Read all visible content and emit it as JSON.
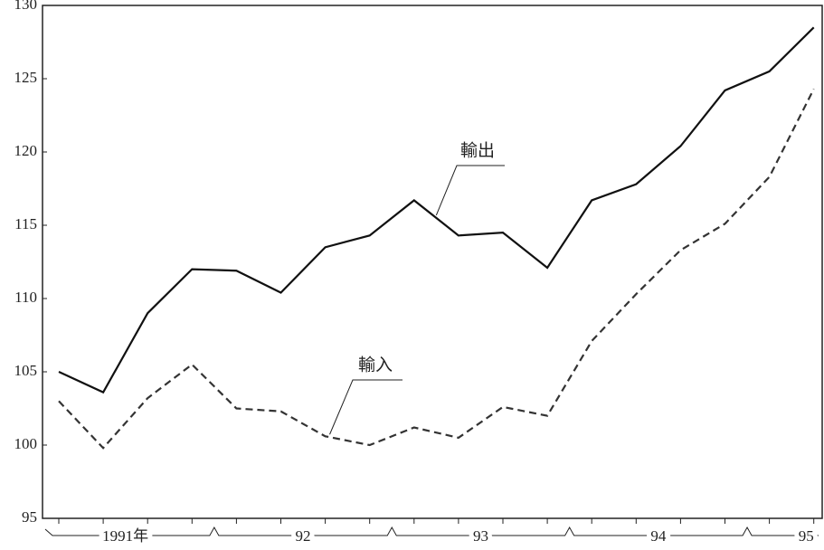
{
  "chart_data": {
    "type": "line",
    "categories": [
      null,
      null,
      null,
      null,
      null,
      null,
      null,
      null,
      null,
      null,
      null,
      null,
      null,
      null,
      null,
      null,
      null,
      null
    ],
    "year_labels": [
      "1991年",
      "92",
      "93",
      "94",
      "95"
    ],
    "series": [
      {
        "name": "輸出",
        "color": "#111111",
        "line_style": "solid",
        "values": [
          105,
          103.6,
          109,
          112,
          111.9,
          110.4,
          113.5,
          114.3,
          116.7,
          114.3,
          114.5,
          112.1,
          116.7,
          117.8,
          120.4,
          124.2,
          125.5,
          128.5
        ]
      },
      {
        "name": "輸入",
        "color": "#333333",
        "line_style": "dashed",
        "values": [
          103,
          99.8,
          103.2,
          105.5,
          102.5,
          102.3,
          100.6,
          100,
          101.2,
          100.5,
          102.6,
          102,
          107.1,
          110.3,
          113.3,
          115.1,
          118.3,
          124.3
        ]
      }
    ],
    "ylim": [
      95,
      130
    ],
    "yticks": [
      95,
      100,
      105,
      110,
      115,
      120,
      125,
      130
    ],
    "grid": false
  }
}
